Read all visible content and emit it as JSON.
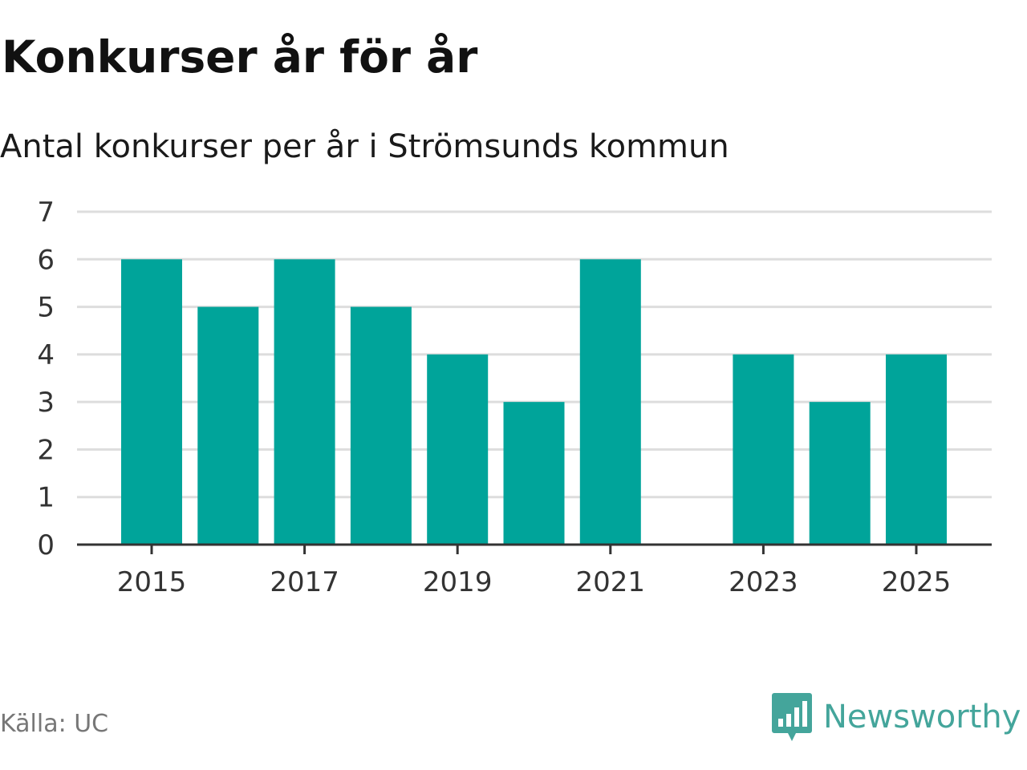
{
  "header": {
    "title": "Konkurser år för år",
    "subtitle": "Antal konkurser per år i Strömsunds kommun"
  },
  "footer": {
    "source": "Källa: UC",
    "brand": "Newsworthy",
    "brand_icon": "newsworthy-logo-icon"
  },
  "colors": {
    "bar": "#00a49a",
    "grid": "#dddddd",
    "axis": "#333333",
    "brand": "#44a59b"
  },
  "chart_data": {
    "type": "bar",
    "title": "Konkurser år för år",
    "subtitle": "Antal konkurser per år i Strömsunds kommun",
    "xlabel": "",
    "ylabel": "",
    "categories": [
      "2015",
      "2016",
      "2017",
      "2018",
      "2019",
      "2020",
      "2021",
      "2022",
      "2023",
      "2024",
      "2025"
    ],
    "values": [
      6,
      5,
      6,
      5,
      4,
      3,
      6,
      0,
      4,
      3,
      4
    ],
    "ylim": [
      0,
      7
    ],
    "yticks": [
      0,
      1,
      2,
      3,
      4,
      5,
      6,
      7
    ],
    "xticks": [
      "2015",
      "2017",
      "2019",
      "2021",
      "2023",
      "2025"
    ],
    "grid": true,
    "legend": "none"
  }
}
